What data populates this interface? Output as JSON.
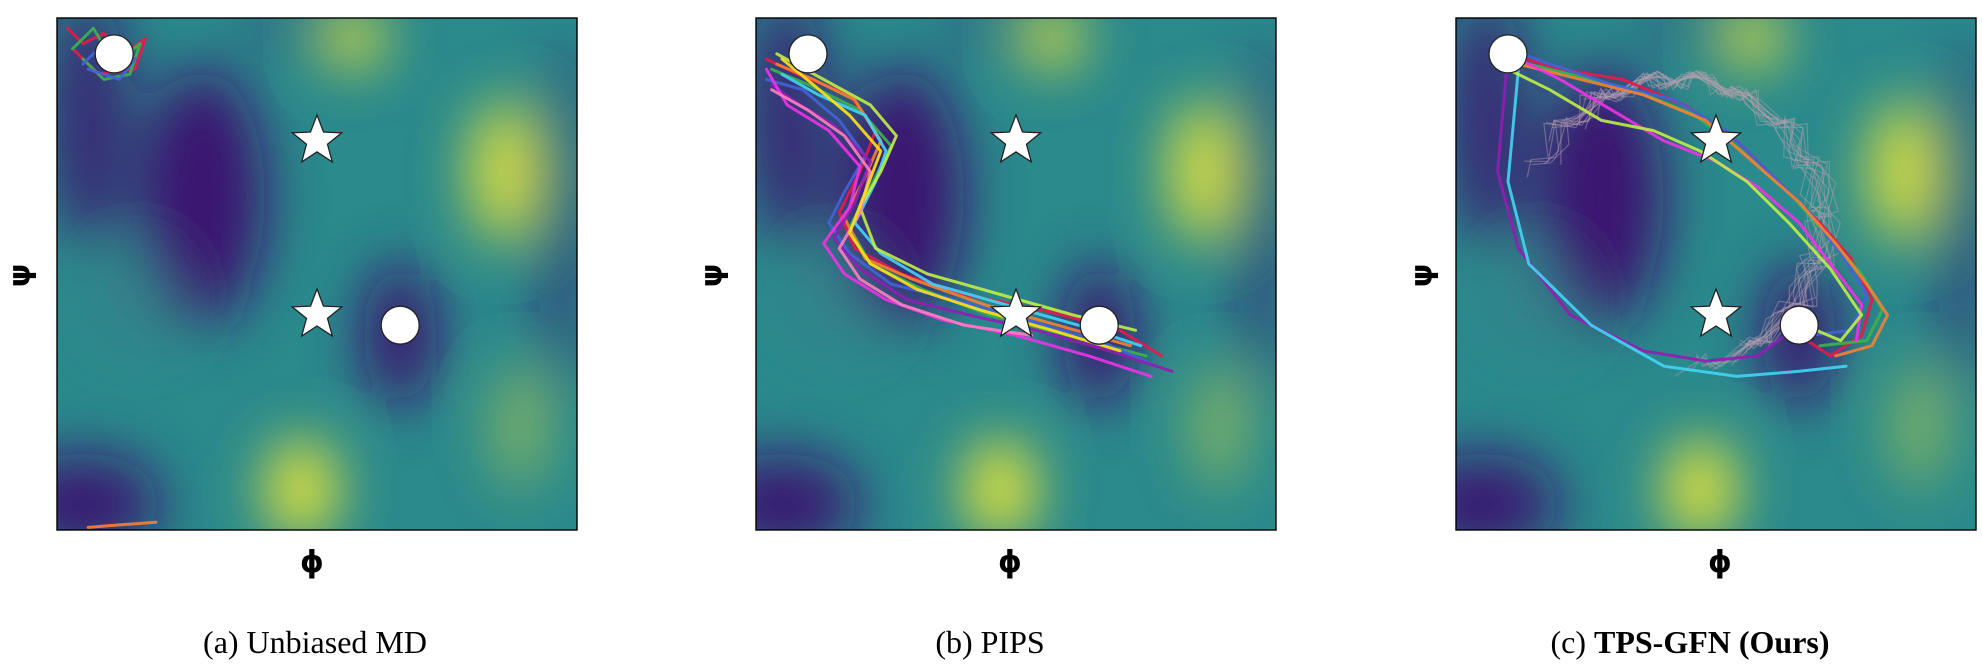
{
  "colors": {
    "low": "#3b0f70",
    "mid": "#2a8a8c",
    "high": "#e3e43a",
    "marker_fill": "#ffffff",
    "marker_stroke": "#222222",
    "trajectory_palette": [
      "#e6194b",
      "#3cb44b",
      "#4363d8",
      "#f58231",
      "#911eb4",
      "#42d4f4",
      "#f032e6",
      "#bfef45",
      "#ff7fbf",
      "#ffe119"
    ]
  },
  "chart_data": [
    {
      "type": "line",
      "panel_caption_prefix": "(a)",
      "panel_caption_text": "Unbiased MD",
      "panel_caption_bold": false,
      "xlabel": "ϕ",
      "ylabel": "ψ",
      "background": "free-energy landscape",
      "markers": {
        "circles": [
          [
            0.11,
            0.07
          ],
          [
            0.66,
            0.6
          ]
        ],
        "stars": [
          [
            0.5,
            0.24
          ],
          [
            0.5,
            0.58
          ]
        ]
      },
      "trajectory_description": "short wiggles near start state",
      "trajectories": [
        {
          "x": [
            0.02,
            0.05,
            0.09,
            0.13,
            0.17,
            0.15,
            0.08,
            0.03
          ],
          "y": [
            0.02,
            0.05,
            0.03,
            0.07,
            0.04,
            0.1,
            0.11,
            0.06
          ]
        },
        {
          "x": [
            0.03,
            0.07,
            0.11,
            0.16,
            0.14,
            0.09,
            0.05
          ],
          "y": [
            0.06,
            0.02,
            0.09,
            0.05,
            0.11,
            0.12,
            0.08
          ]
        },
        {
          "x": [
            0.05,
            0.1,
            0.15,
            0.12,
            0.06
          ],
          "y": [
            0.09,
            0.04,
            0.08,
            0.12,
            0.1
          ]
        },
        {
          "x": [
            0.06,
            0.12,
            0.19
          ],
          "y": [
            0.995,
            0.99,
            0.985
          ]
        }
      ]
    },
    {
      "type": "line",
      "panel_caption_prefix": "(b)",
      "panel_caption_text": "PIPS",
      "panel_caption_bold": false,
      "xlabel": "ϕ",
      "ylabel": "ψ",
      "background": "free-energy landscape",
      "markers": {
        "circles": [
          [
            0.1,
            0.07
          ],
          [
            0.66,
            0.6
          ]
        ],
        "stars": [
          [
            0.5,
            0.24
          ],
          [
            0.5,
            0.58
          ]
        ]
      },
      "trajectories": [
        {
          "x": [
            0.02,
            0.08,
            0.18,
            0.23,
            0.2,
            0.16,
            0.19,
            0.28,
            0.4,
            0.55,
            0.7,
            0.78
          ],
          "y": [
            0.08,
            0.11,
            0.15,
            0.22,
            0.3,
            0.38,
            0.45,
            0.5,
            0.54,
            0.57,
            0.61,
            0.66
          ]
        },
        {
          "x": [
            0.03,
            0.1,
            0.2,
            0.26,
            0.22,
            0.18,
            0.22,
            0.32,
            0.45,
            0.6,
            0.75
          ],
          "y": [
            0.1,
            0.13,
            0.18,
            0.25,
            0.33,
            0.41,
            0.48,
            0.53,
            0.58,
            0.62,
            0.66
          ]
        },
        {
          "x": [
            0.02,
            0.09,
            0.16,
            0.21,
            0.17,
            0.14,
            0.18,
            0.26,
            0.38,
            0.52,
            0.66,
            0.77
          ],
          "y": [
            0.12,
            0.14,
            0.2,
            0.27,
            0.34,
            0.4,
            0.46,
            0.52,
            0.55,
            0.59,
            0.63,
            0.68
          ]
        },
        {
          "x": [
            0.04,
            0.11,
            0.19,
            0.24,
            0.21,
            0.17,
            0.21,
            0.3,
            0.44,
            0.58,
            0.72
          ],
          "y": [
            0.09,
            0.12,
            0.16,
            0.24,
            0.31,
            0.39,
            0.47,
            0.51,
            0.56,
            0.6,
            0.64
          ]
        },
        {
          "x": [
            0.03,
            0.07,
            0.15,
            0.22,
            0.19,
            0.15,
            0.2,
            0.29,
            0.41,
            0.54,
            0.68,
            0.8
          ],
          "y": [
            0.13,
            0.16,
            0.21,
            0.28,
            0.36,
            0.43,
            0.49,
            0.55,
            0.58,
            0.61,
            0.65,
            0.69
          ]
        },
        {
          "x": [
            0.05,
            0.12,
            0.21,
            0.25,
            0.23,
            0.19,
            0.24,
            0.34,
            0.48,
            0.62,
            0.74
          ],
          "y": [
            0.11,
            0.15,
            0.19,
            0.26,
            0.32,
            0.4,
            0.46,
            0.52,
            0.56,
            0.6,
            0.64
          ]
        },
        {
          "x": [
            0.02,
            0.06,
            0.14,
            0.2,
            0.18,
            0.13,
            0.17,
            0.25,
            0.36,
            0.5,
            0.64,
            0.76
          ],
          "y": [
            0.1,
            0.17,
            0.22,
            0.29,
            0.37,
            0.44,
            0.5,
            0.55,
            0.59,
            0.62,
            0.66,
            0.7
          ]
        },
        {
          "x": [
            0.04,
            0.13,
            0.22,
            0.27,
            0.24,
            0.2,
            0.23,
            0.33,
            0.47,
            0.61,
            0.73
          ],
          "y": [
            0.07,
            0.12,
            0.17,
            0.23,
            0.3,
            0.37,
            0.45,
            0.5,
            0.54,
            0.58,
            0.61
          ]
        },
        {
          "x": [
            0.03,
            0.1,
            0.17,
            0.22,
            0.2,
            0.16,
            0.2,
            0.28,
            0.4,
            0.53
          ],
          "y": [
            0.14,
            0.18,
            0.23,
            0.3,
            0.38,
            0.45,
            0.51,
            0.56,
            0.6,
            0.62
          ]
        },
        {
          "x": [
            0.05,
            0.11,
            0.18,
            0.24,
            0.21,
            0.18,
            0.22,
            0.31,
            0.43,
            0.57,
            0.7
          ],
          "y": [
            0.08,
            0.13,
            0.19,
            0.26,
            0.34,
            0.42,
            0.48,
            0.53,
            0.57,
            0.61,
            0.65
          ]
        }
      ]
    },
    {
      "type": "line",
      "panel_caption_prefix": "(c)",
      "panel_caption_text": "TPS-GFN (Ours)",
      "panel_caption_bold": true,
      "xlabel": "ϕ",
      "ylabel": "ψ",
      "background": "free-energy landscape",
      "markers": {
        "circles": [
          [
            0.1,
            0.07
          ],
          [
            0.66,
            0.6
          ]
        ],
        "stars": [
          [
            0.5,
            0.24
          ],
          [
            0.5,
            0.58
          ]
        ]
      },
      "trajectories": [
        {
          "x": [
            0.1,
            0.2,
            0.32,
            0.44,
            0.54,
            0.62,
            0.7,
            0.76,
            0.8,
            0.78,
            0.72,
            0.66
          ],
          "y": [
            0.07,
            0.1,
            0.12,
            0.17,
            0.24,
            0.32,
            0.4,
            0.47,
            0.55,
            0.62,
            0.66,
            0.62
          ]
        },
        {
          "x": [
            0.1,
            0.22,
            0.34,
            0.46,
            0.55,
            0.64,
            0.71,
            0.78,
            0.82,
            0.79,
            0.7
          ],
          "y": [
            0.08,
            0.11,
            0.14,
            0.19,
            0.26,
            0.34,
            0.42,
            0.5,
            0.57,
            0.63,
            0.64
          ]
        },
        {
          "x": [
            0.1,
            0.18,
            0.3,
            0.42,
            0.52,
            0.6,
            0.68,
            0.74,
            0.79,
            0.76,
            0.68
          ],
          "y": [
            0.06,
            0.09,
            0.13,
            0.16,
            0.22,
            0.3,
            0.38,
            0.46,
            0.54,
            0.61,
            0.62
          ]
        },
        {
          "x": [
            0.12,
            0.24,
            0.36,
            0.48,
            0.57,
            0.66,
            0.73,
            0.79,
            0.83,
            0.8,
            0.73
          ],
          "y": [
            0.09,
            0.12,
            0.15,
            0.2,
            0.28,
            0.36,
            0.44,
            0.52,
            0.58,
            0.64,
            0.66
          ]
        },
        {
          "x": [
            0.1,
            0.08,
            0.12,
            0.22,
            0.36,
            0.48,
            0.58,
            0.66
          ],
          "y": [
            0.07,
            0.3,
            0.45,
            0.58,
            0.65,
            0.67,
            0.66,
            0.6
          ]
        },
        {
          "x": [
            0.12,
            0.1,
            0.14,
            0.26,
            0.4,
            0.54,
            0.66,
            0.75
          ],
          "y": [
            0.1,
            0.32,
            0.48,
            0.6,
            0.68,
            0.7,
            0.69,
            0.68
          ]
        },
        {
          "x": [
            0.1,
            0.2,
            0.3,
            0.4,
            0.5,
            0.58,
            0.66,
            0.72,
            0.78,
            0.77
          ],
          "y": [
            0.07,
            0.12,
            0.18,
            0.24,
            0.28,
            0.33,
            0.4,
            0.48,
            0.56,
            0.63
          ]
        },
        {
          "x": [
            0.08,
            0.18,
            0.28,
            0.38,
            0.47,
            0.56,
            0.64,
            0.72,
            0.78,
            0.74,
            0.67
          ],
          "y": [
            0.09,
            0.14,
            0.2,
            0.22,
            0.26,
            0.32,
            0.4,
            0.49,
            0.58,
            0.63,
            0.6
          ]
        }
      ]
    }
  ]
}
